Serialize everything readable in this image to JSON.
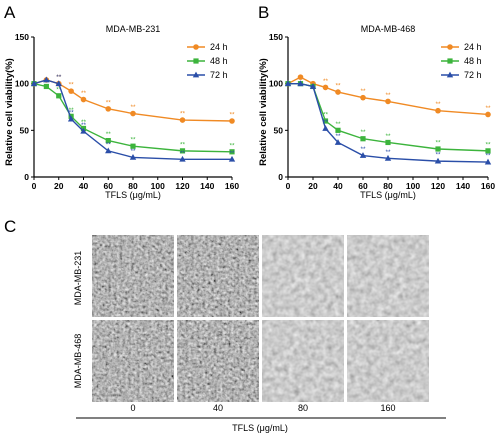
{
  "panel_labels": {
    "a": "A",
    "b": "B",
    "c": "C"
  },
  "colors": {
    "h24": "#f08a24",
    "h48": "#3cb43c",
    "h72": "#2a4ea8",
    "axis": "#000000"
  },
  "chart_data": [
    {
      "type": "line",
      "title": "MDA-MB-231",
      "xlabel": "TFLS (μg/mL)",
      "ylabel": "Relative cell viability(%)",
      "xlim": [
        0,
        160
      ],
      "ylim": [
        0,
        150
      ],
      "xticks": [
        "0",
        "20",
        "40",
        "60",
        "80",
        "100",
        "120",
        "140",
        "160"
      ],
      "yticks": [
        "0",
        "50",
        "100",
        "150"
      ],
      "legend": "top-right",
      "x": [
        0,
        10,
        20,
        30,
        40,
        60,
        80,
        120,
        160
      ],
      "series": [
        {
          "name": "24 h",
          "color": "#f08a24",
          "marker": "circle",
          "values": [
            100,
            104,
            100,
            92,
            83,
            73,
            68,
            61,
            60
          ],
          "sig": [
            false,
            false,
            true,
            true,
            true,
            true,
            true,
            true,
            true
          ]
        },
        {
          "name": "48 h",
          "color": "#3cb43c",
          "marker": "square",
          "values": [
            100,
            97,
            87,
            65,
            52,
            39,
            33,
            28,
            27
          ],
          "sig": [
            false,
            false,
            true,
            true,
            true,
            true,
            true,
            true,
            true
          ]
        },
        {
          "name": "72 h",
          "color": "#2a4ea8",
          "marker": "triangle",
          "values": [
            100,
            104,
            100,
            62,
            49,
            28,
            21,
            19,
            19
          ],
          "sig": [
            false,
            false,
            true,
            true,
            true,
            true,
            true,
            true,
            true
          ]
        }
      ]
    },
    {
      "type": "line",
      "title": "MDA-MB-468",
      "xlabel": "TFLS (μg/mL)",
      "ylabel": "Relative cell viability(%)",
      "xlim": [
        0,
        160
      ],
      "ylim": [
        0,
        150
      ],
      "xticks": [
        "0",
        "20",
        "40",
        "60",
        "80",
        "100",
        "120",
        "140",
        "160"
      ],
      "yticks": [
        "0",
        "50",
        "100",
        "150"
      ],
      "legend": "top-right",
      "x": [
        0,
        10,
        20,
        30,
        40,
        60,
        80,
        120,
        160
      ],
      "series": [
        {
          "name": "24 h",
          "color": "#f08a24",
          "marker": "circle",
          "values": [
            100,
            107,
            100,
            96,
            91,
            85,
            81,
            71,
            67
          ],
          "sig": [
            false,
            false,
            false,
            true,
            true,
            true,
            true,
            true,
            true
          ]
        },
        {
          "name": "48 h",
          "color": "#3cb43c",
          "marker": "square",
          "values": [
            100,
            100,
            97,
            60,
            50,
            41,
            37,
            30,
            28
          ],
          "sig": [
            false,
            false,
            false,
            true,
            true,
            true,
            true,
            true,
            true
          ]
        },
        {
          "name": "72 h",
          "color": "#2a4ea8",
          "marker": "triangle",
          "values": [
            100,
            100,
            97,
            52,
            37,
            23,
            20,
            17,
            16
          ],
          "sig": [
            false,
            false,
            false,
            true,
            true,
            true,
            true,
            true,
            true
          ]
        }
      ]
    }
  ],
  "panel_c": {
    "row_labels": [
      "MDA-MB-231",
      "MDA-MB-468"
    ],
    "col_labels": [
      "0",
      "40",
      "80",
      "160"
    ],
    "xlabel": "TFLS (μg/mL)"
  },
  "sig_label": "**"
}
